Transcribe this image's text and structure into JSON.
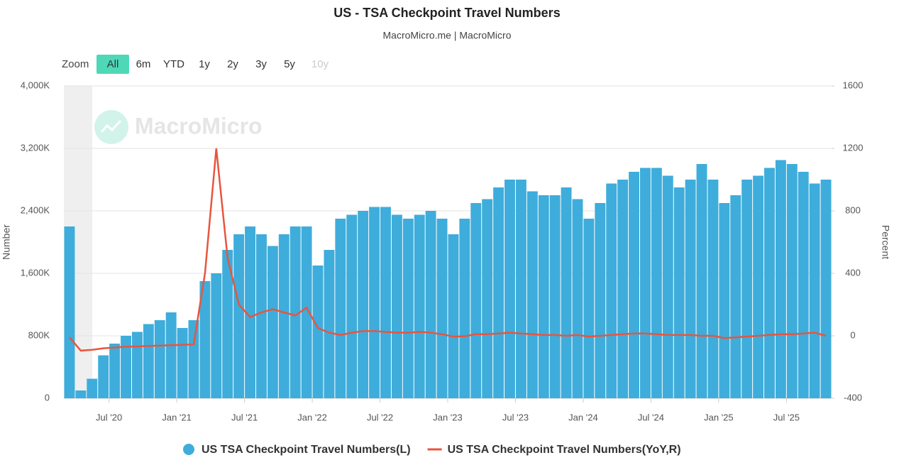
{
  "chart_data": {
    "type": "combo",
    "title": "US - TSA Checkpoint Travel Numbers",
    "subtitle": "MacroMicro.me | MacroMicro",
    "watermark": "MacroMicro",
    "zoom": {
      "label": "Zoom",
      "buttons": [
        "All",
        "6m",
        "YTD",
        "1y",
        "2y",
        "3y",
        "5y",
        "10y"
      ],
      "active_index": 0,
      "disabled_index": 7
    },
    "y_label": "Number",
    "y2_label": "Percent",
    "categories": [
      null,
      null,
      null,
      null,
      "Jul '20",
      null,
      null,
      null,
      null,
      null,
      "Jan '21",
      null,
      null,
      null,
      null,
      null,
      "Jul '21",
      null,
      null,
      null,
      null,
      null,
      "Jan '22",
      null,
      null,
      null,
      null,
      null,
      "Jul '22",
      null,
      null,
      null,
      null,
      null,
      "Jan '23",
      null,
      null,
      null,
      null,
      null,
      "Jul '23",
      null,
      null,
      null,
      null,
      null,
      "Jan '24",
      null,
      null,
      null,
      null,
      null,
      "Jul '24",
      null,
      null,
      null,
      null,
      null,
      "Jan '25",
      null,
      null,
      null,
      null,
      null,
      "Jul '25",
      null,
      null,
      null
    ],
    "series": [
      {
        "name": "US TSA Checkpoint Travel Numbers(L)",
        "type": "bar",
        "color": "#3eaddb",
        "values": [
          2200000,
          100000,
          250000,
          550000,
          700000,
          800000,
          850000,
          950000,
          1000000,
          1100000,
          900000,
          1000000,
          1500000,
          1600000,
          1900000,
          2100000,
          2200000,
          2100000,
          1950000,
          2100000,
          2200000,
          2200000,
          1700000,
          1900000,
          2300000,
          2350000,
          2400000,
          2450000,
          2450000,
          2350000,
          2300000,
          2350000,
          2400000,
          2300000,
          2100000,
          2300000,
          2500000,
          2550000,
          2700000,
          2800000,
          2800000,
          2650000,
          2600000,
          2600000,
          2700000,
          2550000,
          2300000,
          2500000,
          2750000,
          2800000,
          2900000,
          2950000,
          2950000,
          2850000,
          2700000,
          2800000,
          3000000,
          2800000,
          2500000,
          2600000,
          2800000,
          2850000,
          2950000,
          3050000,
          3000000,
          2900000,
          2750000,
          2800000
        ]
      },
      {
        "name": "US TSA Checkpoint Travel Numbers(YoY,R)",
        "type": "line",
        "axis": "y2",
        "color": "#e8553e",
        "values": [
          -10,
          -95,
          -90,
          -80,
          -75,
          -70,
          -68,
          -65,
          -63,
          -60,
          -58,
          -55,
          400,
          1200,
          500,
          200,
          120,
          150,
          170,
          150,
          130,
          180,
          50,
          20,
          5,
          20,
          30,
          30,
          25,
          20,
          20,
          25,
          20,
          10,
          -5,
          -3,
          10,
          10,
          15,
          20,
          15,
          10,
          5,
          5,
          0,
          5,
          -5,
          0,
          5,
          10,
          15,
          15,
          10,
          5,
          5,
          5,
          0,
          0,
          -15,
          -10,
          -5,
          0,
          5,
          10,
          10,
          15,
          20,
          0
        ]
      }
    ],
    "ylim": [
      0,
      4000000
    ],
    "yticks": [
      0,
      {
        "value": 800000,
        "label": "800K"
      },
      {
        "value": 1600000,
        "label": "1,600K"
      },
      {
        "value": 2400000,
        "label": "2,400K"
      },
      {
        "value": 3200000,
        "label": "3,200K"
      },
      {
        "value": 4000000,
        "label": "4,000K"
      }
    ],
    "y2lim": [
      -400,
      1600
    ],
    "y2ticks": [
      -400,
      0,
      400,
      800,
      1200,
      1600
    ],
    "grid": true
  }
}
